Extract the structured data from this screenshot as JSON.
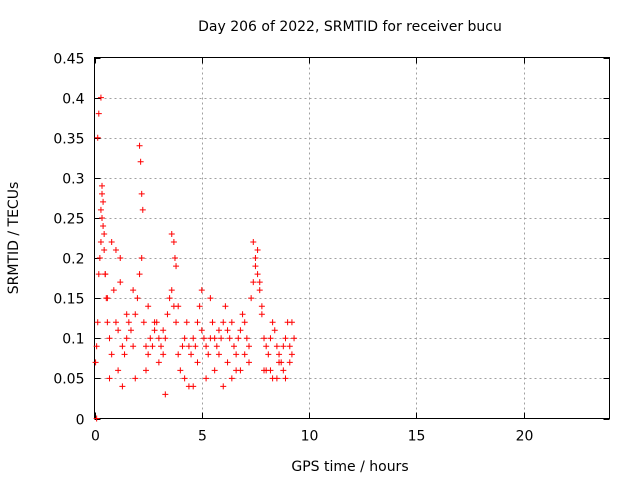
{
  "chart_data": {
    "type": "scatter",
    "title": "Day 206 of 2022, SRMTID for receiver bucu",
    "xlabel": "GPS time / hours",
    "ylabel": "SRMTID / TECUs",
    "xlim": [
      0,
      24
    ],
    "ylim": [
      0,
      0.45
    ],
    "xticks": [
      0,
      5,
      10,
      15,
      20
    ],
    "xtick_labels": [
      "0",
      "5",
      "10",
      "15",
      "20"
    ],
    "yticks": [
      0,
      0.05,
      0.1,
      0.15,
      0.2,
      0.25,
      0.3,
      0.35,
      0.4,
      0.45
    ],
    "ytick_labels": [
      "0",
      "0.05",
      "0.1",
      "0.15",
      "0.2",
      "0.25",
      "0.3",
      "0.35",
      "0.4",
      "0.45"
    ],
    "grid": true,
    "marker": "plus",
    "color": "#ff0000",
    "series": [
      {
        "x": [
          0.05,
          0.1,
          0.15,
          0.2,
          0.25,
          0.3,
          0.35,
          0.4,
          0.45,
          0.5,
          0.55,
          0.6,
          0.7,
          0.8,
          0.9,
          1.0,
          1.1,
          1.2,
          1.3,
          1.4,
          1.5,
          1.6,
          1.7,
          1.8,
          1.9,
          2.0,
          2.1,
          2.2,
          2.3,
          2.4,
          2.5,
          2.6,
          2.7,
          2.8,
          2.9,
          3.0,
          3.1,
          3.2,
          3.3,
          3.4,
          3.5,
          3.6,
          3.7,
          3.8,
          3.9,
          4.0,
          4.1,
          4.2,
          4.3,
          4.4,
          4.5,
          4.6,
          4.7,
          4.8,
          4.9,
          5.0,
          5.1,
          5.2,
          5.3,
          5.4,
          5.5,
          5.6,
          5.7,
          5.8,
          5.9,
          6.0,
          6.1,
          6.2,
          6.3,
          6.4,
          6.5,
          6.6,
          6.7,
          6.8,
          6.9,
          7.0,
          7.1,
          7.2,
          7.3,
          7.4,
          7.5,
          7.6,
          7.7,
          7.8,
          7.9,
          8.0,
          8.1,
          8.2,
          8.3,
          8.4,
          8.5,
          8.6,
          8.7,
          8.8,
          8.9,
          9.0,
          9.1,
          9.2,
          9.3,
          0.1,
          0.15,
          0.2,
          0.3,
          0.35,
          0.4,
          0.5,
          0.6,
          0.8,
          1.0,
          1.2,
          1.5,
          1.8,
          2.1,
          2.15,
          2.2,
          2.25,
          2.5,
          2.8,
          3.2,
          3.6,
          3.7,
          3.75,
          3.8,
          3.9,
          4.2,
          4.6,
          5.0,
          5.4,
          5.8,
          6.2,
          6.6,
          7.0,
          7.4,
          7.5,
          7.6,
          7.7,
          7.8,
          8.0,
          8.3,
          8.6,
          8.9,
          9.2,
          0.3,
          0.35,
          0.45,
          0.7,
          1.1,
          1.3,
          1.9,
          2.4,
          3.0,
          3.3,
          4.4,
          4.8,
          5.2,
          5.6,
          6.0,
          6.4,
          6.8,
          7.2,
          7.9,
          8.2,
          8.5,
          8.8,
          9.1
        ],
        "y": [
          0.07,
          0.09,
          0.12,
          0.18,
          0.2,
          0.22,
          0.25,
          0.27,
          0.21,
          0.18,
          0.15,
          0.12,
          0.1,
          0.08,
          0.16,
          0.12,
          0.11,
          0.2,
          0.09,
          0.08,
          0.1,
          0.12,
          0.11,
          0.09,
          0.13,
          0.15,
          0.18,
          0.2,
          0.12,
          0.09,
          0.08,
          0.1,
          0.09,
          0.11,
          0.12,
          0.1,
          0.09,
          0.08,
          0.1,
          0.13,
          0.15,
          0.16,
          0.14,
          0.12,
          0.08,
          0.06,
          0.09,
          0.1,
          0.12,
          0.09,
          0.08,
          0.1,
          0.09,
          0.12,
          0.14,
          0.11,
          0.1,
          0.09,
          0.08,
          0.1,
          0.12,
          0.1,
          0.09,
          0.11,
          0.1,
          0.12,
          0.14,
          0.11,
          0.1,
          0.12,
          0.09,
          0.08,
          0.1,
          0.11,
          0.13,
          0.12,
          0.1,
          0.09,
          0.15,
          0.17,
          0.19,
          0.21,
          0.16,
          0.13,
          0.1,
          0.09,
          0.08,
          0.1,
          0.12,
          0.11,
          0.09,
          0.08,
          0.07,
          0.09,
          0.1,
          0.12,
          0.09,
          0.08,
          0.1,
          0.0,
          0.35,
          0.38,
          0.4,
          0.29,
          0.24,
          0.18,
          0.15,
          0.22,
          0.21,
          0.17,
          0.13,
          0.16,
          0.34,
          0.32,
          0.28,
          0.26,
          0.14,
          0.12,
          0.11,
          0.23,
          0.22,
          0.2,
          0.19,
          0.14,
          0.05,
          0.04,
          0.16,
          0.15,
          0.08,
          0.07,
          0.06,
          0.08,
          0.22,
          0.2,
          0.18,
          0.17,
          0.14,
          0.06,
          0.05,
          0.07,
          0.05,
          0.12,
          0.26,
          0.28,
          0.23,
          0.05,
          0.06,
          0.04,
          0.05,
          0.06,
          0.07,
          0.03,
          0.04,
          0.07,
          0.05,
          0.06,
          0.04,
          0.05,
          0.06,
          0.07,
          0.06,
          0.06,
          0.05,
          0.06,
          0.07
        ]
      }
    ]
  }
}
